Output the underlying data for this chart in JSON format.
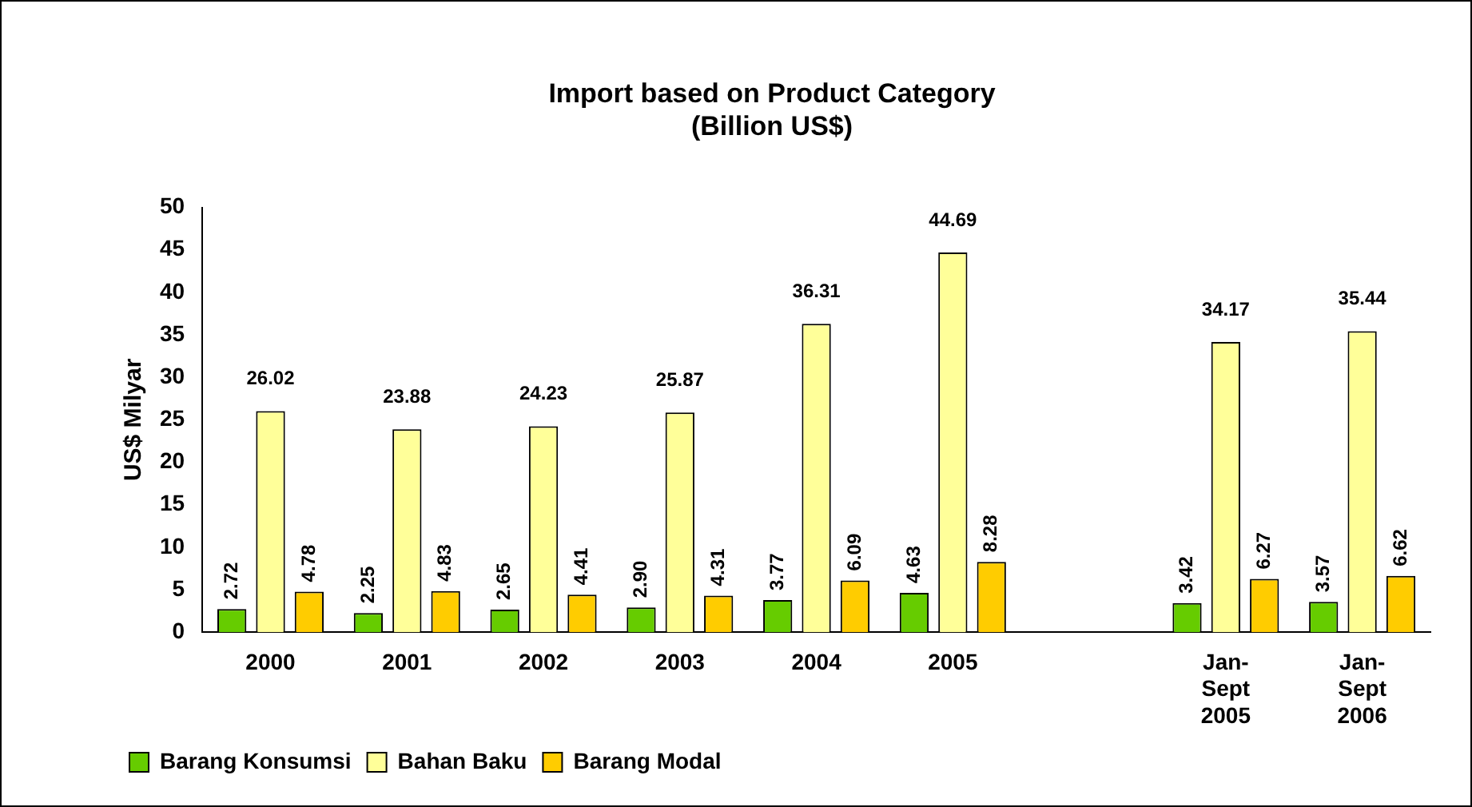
{
  "chart_data": {
    "type": "bar",
    "title": [
      "Import based on Product Category",
      "(Billion US$)"
    ],
    "ylabel": "US$ Milyar",
    "categories": [
      "2000",
      "2001",
      "2002",
      "2003",
      "2004",
      "2005",
      null,
      "Jan-Sept 2005",
      "Jan-Sept 2006"
    ],
    "series": [
      {
        "name": "Barang Konsumsi",
        "color": "#66cc00",
        "values": [
          2.72,
          2.25,
          2.65,
          2.9,
          3.77,
          4.63,
          null,
          3.42,
          3.57
        ],
        "value_labels": [
          "2.72",
          "2.25",
          "2.65",
          "2.90",
          "3.77",
          "4.63",
          null,
          "3.42",
          "3.57"
        ]
      },
      {
        "name": "Bahan Baku",
        "color": "#ffff99",
        "values": [
          26.02,
          23.88,
          24.23,
          25.87,
          36.31,
          44.69,
          null,
          34.17,
          35.44
        ],
        "value_labels": [
          "26.02",
          "23.88",
          "24.23",
          "25.87",
          "36.31",
          "44.69",
          null,
          "34.17",
          "35.44"
        ]
      },
      {
        "name": "Barang Modal",
        "color": "#ffcc00",
        "values": [
          4.78,
          4.83,
          4.41,
          4.31,
          6.09,
          8.28,
          null,
          6.27,
          6.62
        ],
        "value_labels": [
          "4.78",
          "4.83",
          "4.41",
          "4.31",
          "6.09",
          "8.28",
          null,
          "6.27",
          "6.62"
        ]
      }
    ],
    "ylim": [
      0,
      50
    ],
    "yticks": [
      0,
      5,
      10,
      15,
      20,
      25,
      30,
      35,
      40,
      45,
      50
    ],
    "legend": "bottom left"
  }
}
